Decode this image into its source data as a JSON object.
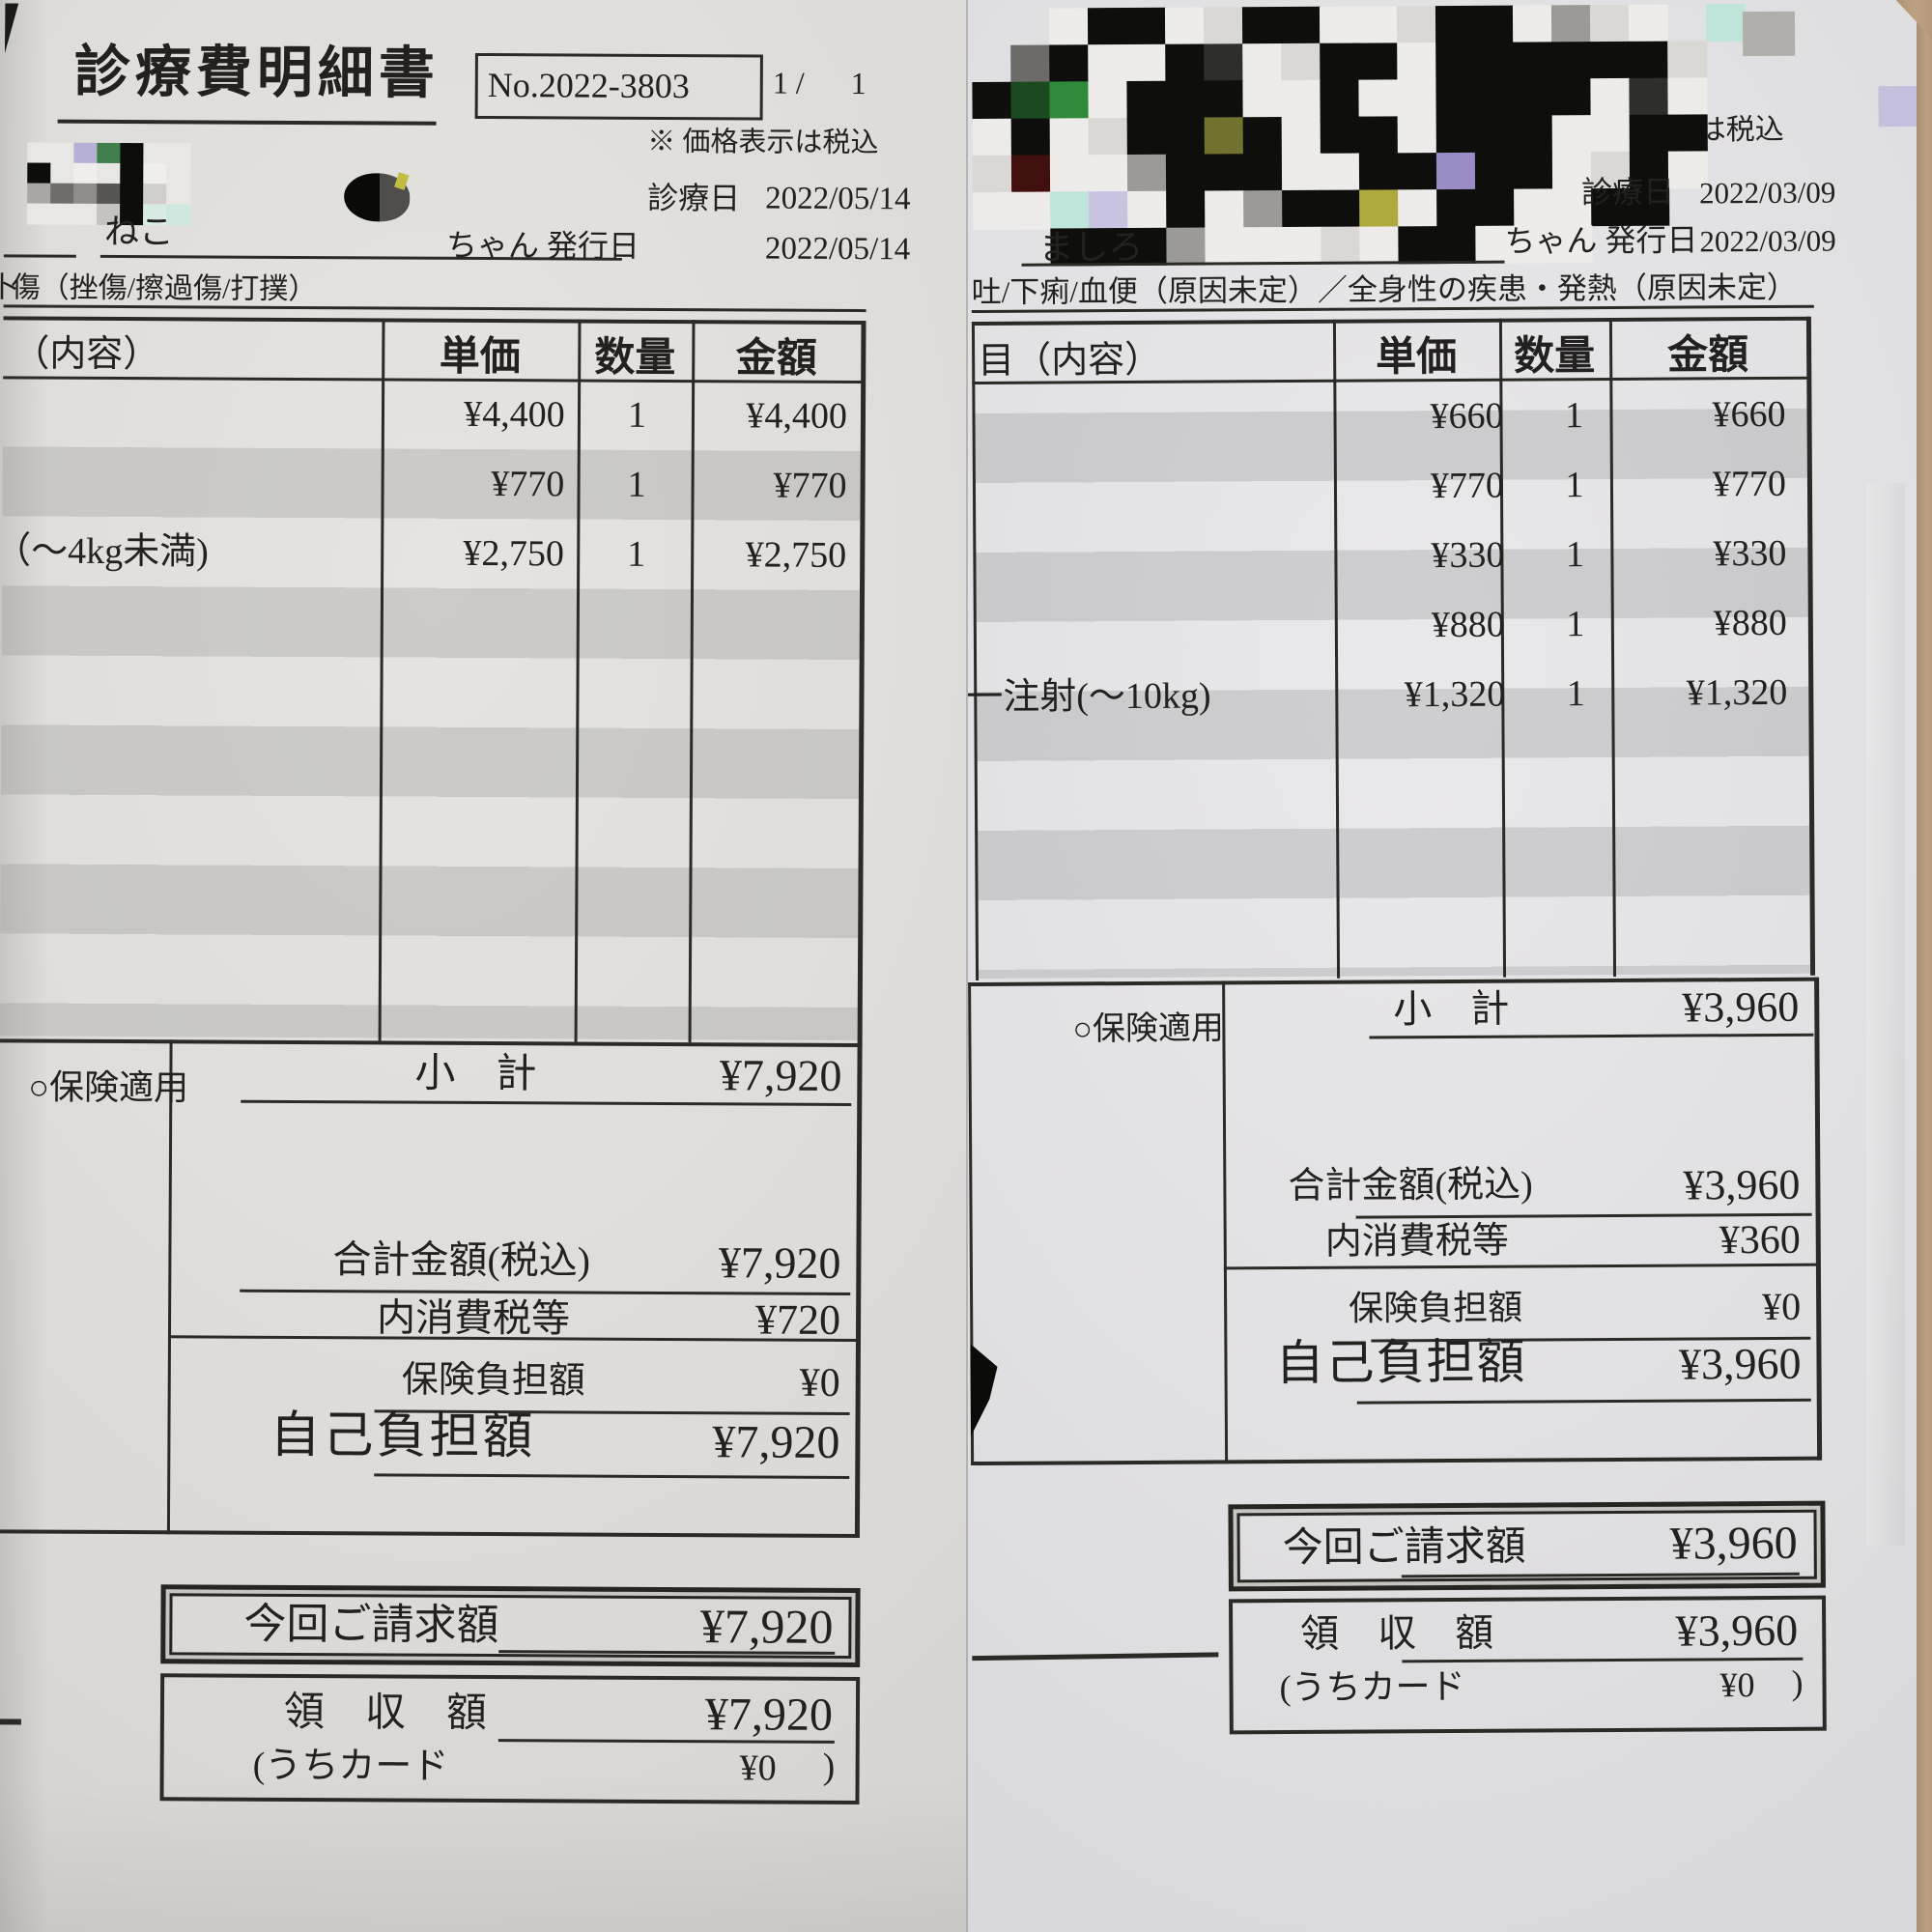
{
  "left": {
    "title": "診療費明細書",
    "receipt_no": "No.2022-3803",
    "page": "1 /      1",
    "tax_note": "※ 価格表示は税込",
    "visit_label": "診療日",
    "visit_date": "2022/05/14",
    "pet_name": "ねこ",
    "issue_label": "ちゃん 発行日",
    "issue_date": "2022/05/14",
    "diagnosis_fragment": "卜",
    "diagnosis": "傷（挫傷/擦過傷/打撲）",
    "table": {
      "desc_header": "（内容）",
      "unit_header": "単価",
      "qty_header": "数量",
      "amount_header": "金額",
      "rows": [
        {
          "desc": "",
          "unit": "¥4,400",
          "qty": "1",
          "amount": "¥4,400"
        },
        {
          "desc": "",
          "unit": "¥770",
          "qty": "1",
          "amount": "¥770"
        },
        {
          "desc": "（～4kg未満)",
          "unit": "¥2,750",
          "qty": "1",
          "amount": "¥2,750"
        }
      ]
    },
    "insurance_label": "○保険適用",
    "subtotal_label": "小　計",
    "subtotal": "¥7,920",
    "total_label": "合計金額(税込)",
    "total": "¥7,920",
    "tax_label": "内消費税等",
    "tax": "¥720",
    "ins_burden_label": "保険負担額",
    "ins_burden": "¥0",
    "self_pay_label": "自己負担額",
    "self_pay": "¥7,920",
    "billed_label": "今回ご請求額",
    "billed": "¥7,920",
    "received_label": "領　収　額",
    "received": "¥7,920",
    "card_label": "(うちカード",
    "card_amount": "¥0",
    "card_close": ")",
    "mosaic": {
      "cw": 24,
      "ch": 21,
      "palette": {
        "a": "#e8e7e4",
        "b": "#0d0d0b",
        "c": "#b6afd6",
        "d": "#41804d",
        "e": "#a8a7a4",
        "f": "#6e6d6a",
        "g": "#8e8d8a",
        "h": "#575654",
        "i": "#d0cfcc",
        "j": "#d8ece3",
        "k": "#cfe8df",
        "l": "#efeeec",
        "m": "#c4c3c0"
      },
      "rows": [
        "aacdbaa",
        "balabla",
        "efghbia",
        "aaambjk"
      ]
    }
  },
  "right": {
    "tax_note_partial": "価格表示は税込",
    "visit_label": "診療日",
    "visit_date": "2022/03/09",
    "pet_name": "ましろ",
    "issue_label": "ちゃん 発行日",
    "issue_date": "2022/03/09",
    "diagnosis": "吐/下痢/血便（原因未定）／全身性の疾患・発熱（原因未定）",
    "table": {
      "desc_header": "目（内容）",
      "unit_header": "単価",
      "qty_header": "数量",
      "amount_header": "金額",
      "rows": [
        {
          "desc": "",
          "unit": "¥660",
          "qty": "1",
          "amount": "¥660"
        },
        {
          "desc": "",
          "unit": "¥770",
          "qty": "1",
          "amount": "¥770"
        },
        {
          "desc": "",
          "unit": "¥330",
          "qty": "1",
          "amount": "¥330"
        },
        {
          "desc": "",
          "unit": "¥880",
          "qty": "1",
          "amount": "¥880"
        },
        {
          "desc": "一注射(～10kg)",
          "unit": "¥1,320",
          "qty": "1",
          "amount": "¥1,320"
        }
      ]
    },
    "insurance_label": "○保険適用",
    "subtotal_label": "小　計",
    "subtotal": "¥3,960",
    "total_label": "合計金額(税込)",
    "total": "¥3,960",
    "tax_label": "内消費税等",
    "tax": "¥360",
    "ins_burden_label": "保険負担額",
    "ins_burden": "¥0",
    "self_pay_label": "自己負担額",
    "self_pay": "¥3,960",
    "billed_label": "今回ご請求額",
    "billed": "¥3,960",
    "received_label": "領　収　額",
    "received": "¥3,960",
    "card_label": "(うちカード",
    "card_amount": "¥0",
    "card_close": ")",
    "mosaic": {
      "cw": 40,
      "ch": 38,
      "palette": {
        "K": "#0e0e0c",
        "k": "#2e2e2c",
        "W": "#edecea",
        "w": "#d9d8d5",
        "G": "#9b9a97",
        "g": "#6c6b68",
        "O": "#72722f",
        "E": "#1c4a20",
        "N": "#2f8a3a",
        "R": "#420f0f",
        "P": "#9a8dc6",
        "L": "#c9c3e2",
        "C": "#bfe4da",
        "Y": "#b0aa3e"
      },
      "rows": [
        "  WKKWwKKWWwKKWGwW C",
        " gKWWKkWwKKWKKKKKKw ",
        "KENWKKKWWKWWKKKKWkW ",
        "WKWwKKOKWKKWKKKWWKK ",
        "wRWWGKKKWWKKPKKWwKW ",
        "WWCLWKWGKKYWKKWWKK  ",
        "  KKKGWWWwWKKWWW    "
      ]
    }
  }
}
